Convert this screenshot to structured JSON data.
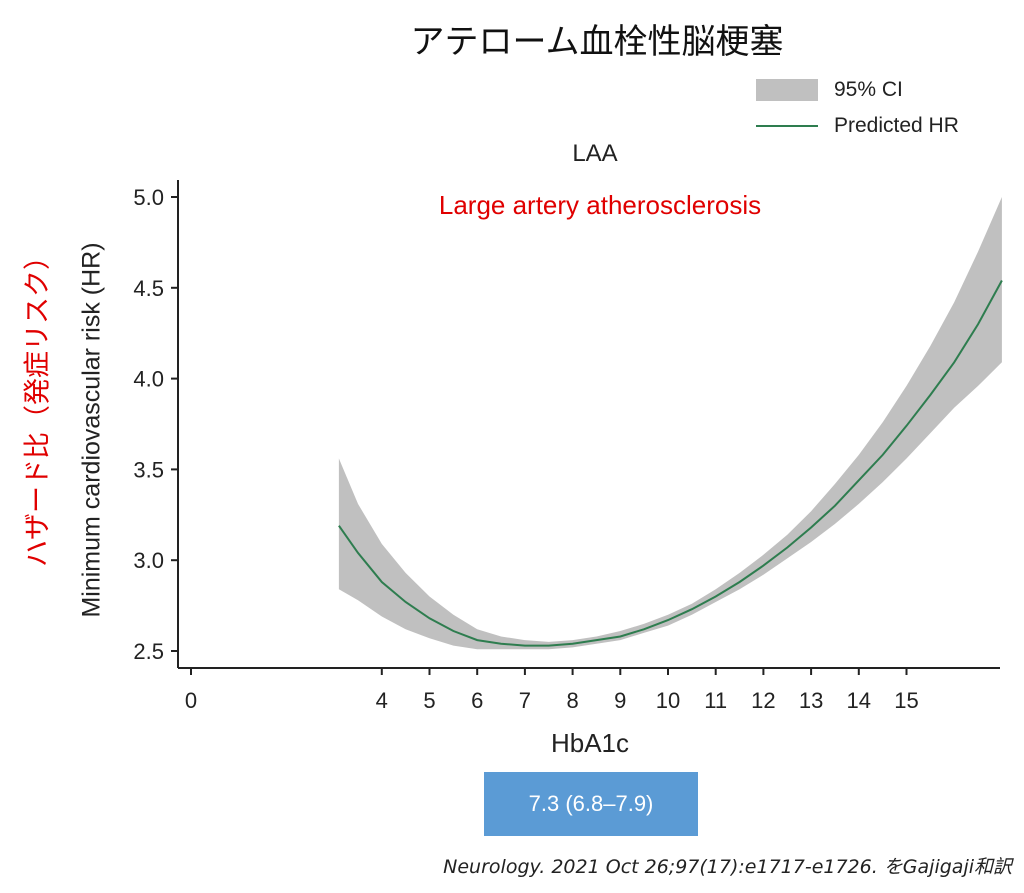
{
  "title": "アテローム血栓性脳梗塞",
  "legend": {
    "ci_label": "95% CI",
    "line_label": "Predicted HR"
  },
  "panel_title": "LAA",
  "annotation": "Large artery atherosclerosis",
  "ylabel": "Minimum cardiovascular risk (HR)",
  "ylabel_ja": "ハザード比（発症リスク）",
  "xlabel": "HbA1c",
  "range_box": "7.3 (6.8–7.9)",
  "citation": "Neurology. 2021 Oct 26;97(17):e1717-e1726. をGajigaji和訳",
  "colors": {
    "ci_band": "#c0c0c0",
    "line": "#2e7d4f",
    "annotation": "#e00000",
    "range_box": "#5b9bd5"
  },
  "chart_data": {
    "type": "line",
    "title": "LAA",
    "xlabel": "HbA1c",
    "ylabel": "Minimum cardiovascular risk (HR)",
    "xlim": [
      0,
      17
    ],
    "ylim": [
      2.5,
      5.0
    ],
    "x_ticks": [
      0,
      4,
      5,
      6,
      7,
      8,
      9,
      10,
      11,
      12,
      13,
      14,
      15
    ],
    "y_ticks": [
      2.5,
      3.0,
      3.5,
      4.0,
      4.5,
      5.0
    ],
    "y_tick_labels": [
      "2.5",
      "3.0",
      "3.5",
      "4.0",
      "4.5",
      "5.0"
    ],
    "series": [
      {
        "name": "Predicted HR",
        "x": [
          3.1,
          3.5,
          4.0,
          4.5,
          5.0,
          5.5,
          6.0,
          6.5,
          7.0,
          7.5,
          8.0,
          8.5,
          9.0,
          9.5,
          10.0,
          10.5,
          11.0,
          11.5,
          12.0,
          12.5,
          13.0,
          13.5,
          14.0,
          14.5,
          15.0,
          15.5,
          16.0,
          16.5,
          17.0
        ],
        "y": [
          3.19,
          3.04,
          2.88,
          2.77,
          2.68,
          2.61,
          2.56,
          2.54,
          2.53,
          2.53,
          2.54,
          2.56,
          2.58,
          2.62,
          2.67,
          2.73,
          2.8,
          2.88,
          2.97,
          3.07,
          3.18,
          3.3,
          3.44,
          3.58,
          3.74,
          3.91,
          4.09,
          4.3,
          4.54
        ]
      },
      {
        "name": "95% CI",
        "x": [
          3.1,
          3.5,
          4.0,
          4.5,
          5.0,
          5.5,
          6.0,
          6.5,
          7.0,
          7.5,
          8.0,
          8.5,
          9.0,
          9.5,
          10.0,
          10.5,
          11.0,
          11.5,
          12.0,
          12.5,
          13.0,
          13.5,
          14.0,
          14.5,
          15.0,
          15.5,
          16.0,
          16.5,
          17.0
        ],
        "lower": [
          2.84,
          2.78,
          2.69,
          2.62,
          2.57,
          2.53,
          2.51,
          2.51,
          2.51,
          2.51,
          2.52,
          2.54,
          2.56,
          2.6,
          2.64,
          2.7,
          2.77,
          2.84,
          2.92,
          3.01,
          3.1,
          3.2,
          3.31,
          3.43,
          3.56,
          3.7,
          3.84,
          3.96,
          4.09
        ],
        "upper": [
          3.56,
          3.31,
          3.09,
          2.93,
          2.8,
          2.7,
          2.62,
          2.58,
          2.56,
          2.55,
          2.56,
          2.58,
          2.61,
          2.65,
          2.7,
          2.76,
          2.84,
          2.93,
          3.03,
          3.14,
          3.27,
          3.42,
          3.58,
          3.76,
          3.96,
          4.18,
          4.42,
          4.7,
          5.0
        ]
      }
    ],
    "grid": false,
    "legend_position": "top-right"
  }
}
